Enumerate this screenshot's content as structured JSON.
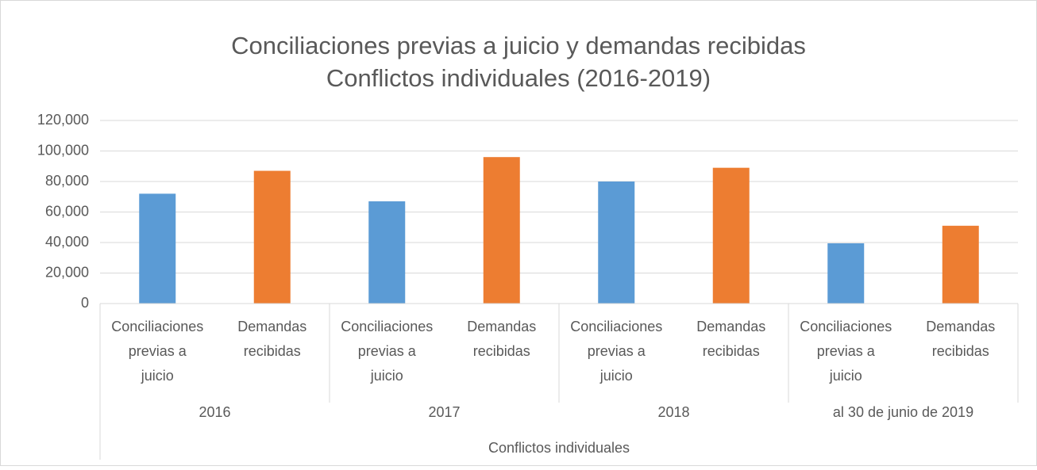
{
  "chart_data": {
    "type": "bar",
    "title": [
      "Conciliaciones previas a juicio y demandas recibidas",
      "Conflictos individuales (2016-2019)"
    ],
    "categories": [
      "Conciliaciones previas a juicio",
      "Demandas recibidas",
      "Conciliaciones previas a juicio",
      "Demandas recibidas",
      "Conciliaciones previas a juicio",
      "Demandas recibidas",
      "Conciliaciones previas a juicio",
      "Demandas recibidas"
    ],
    "category_groups": [
      "2016",
      "2017",
      "2018",
      "al 30 de junio de 2019"
    ],
    "outer_group": "Conflictos individuales",
    "values": [
      72000,
      87000,
      67000,
      96000,
      80000,
      89000,
      39500,
      51000
    ],
    "colors": [
      "#5b9bd5",
      "#ed7d31",
      "#5b9bd5",
      "#ed7d31",
      "#5b9bd5",
      "#ed7d31",
      "#5b9bd5",
      "#ed7d31"
    ],
    "ylim": [
      0,
      120000
    ],
    "yticks": [
      0,
      {
        "value": 20000,
        "label": "20,000"
      },
      {
        "value": 40000,
        "label": "40,000"
      },
      {
        "value": 60000,
        "label": "60,000"
      },
      {
        "value": 80000,
        "label": "80,000"
      },
      {
        "value": 100000,
        "label": "100,000"
      },
      {
        "value": 120000,
        "label": "120,000"
      }
    ],
    "grid": true
  }
}
